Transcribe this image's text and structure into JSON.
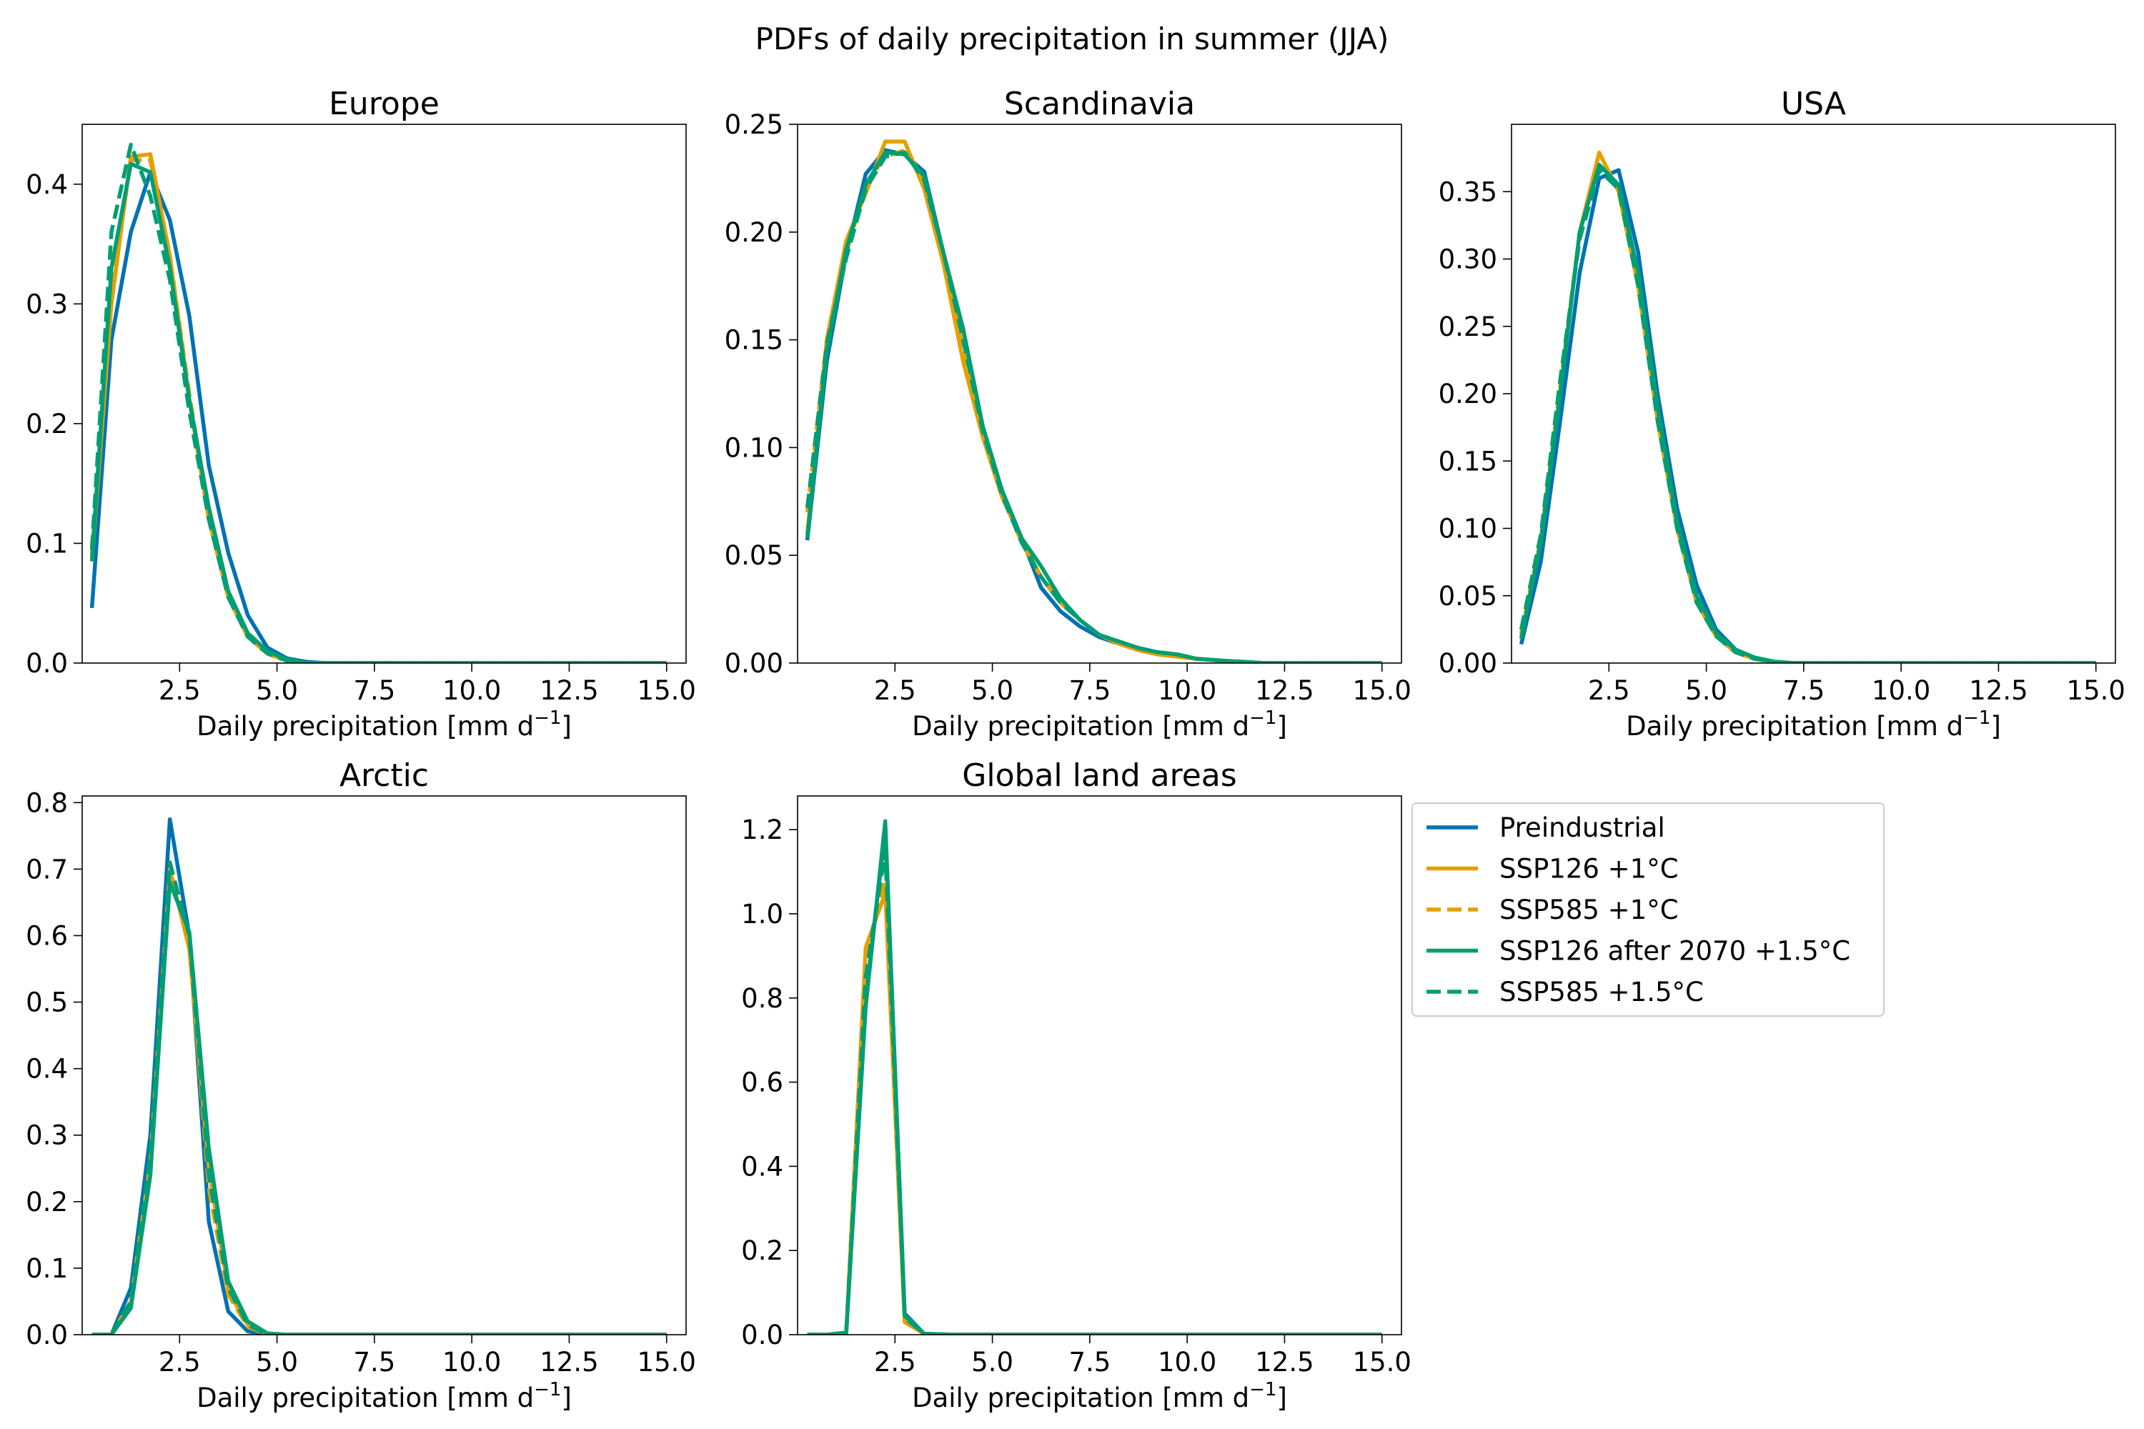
{
  "figure_title": "PDFs of daily precipitation in summer (JJA)",
  "legend": {
    "placement": "right of Global land areas panel",
    "entries": [
      {
        "label": "Preindustrial",
        "color": "#0072B2",
        "dash": false
      },
      {
        "label": "SSP126 +1°C",
        "color": "#E69F00",
        "dash": false
      },
      {
        "label": "SSP585 +1°C",
        "color": "#E69F00",
        "dash": true
      },
      {
        "label": "SSP126 after 2070 +1.5°C",
        "color": "#009E73",
        "dash": false
      },
      {
        "label": "SSP585 +1.5°C",
        "color": "#009E73",
        "dash": true
      }
    ]
  },
  "chart_data": [
    {
      "type": "line",
      "title": "Europe",
      "xlabel": "Daily precipitation [mm d",
      "xlabel_sup": "−1",
      "xlabel_end": "]",
      "xlim": [
        0,
        15.5
      ],
      "ylim": [
        0,
        0.45
      ],
      "xticks": [
        "2.5",
        "5.0",
        "7.5",
        "10.0",
        "12.5",
        "15.0"
      ],
      "yticks": [
        "0.0",
        "0.1",
        "0.2",
        "0.3",
        "0.4"
      ],
      "x": [
        0.25,
        0.75,
        1.25,
        1.75,
        2.25,
        2.75,
        3.25,
        3.75,
        4.25,
        4.75,
        5.25,
        5.75,
        6.25,
        7.0,
        8.0,
        10.0,
        12.0,
        15.0
      ],
      "series": [
        {
          "name": "Preindustrial",
          "values": [
            0.046,
            0.27,
            0.36,
            0.41,
            0.37,
            0.29,
            0.165,
            0.092,
            0.04,
            0.013,
            0.004,
            0.001,
            0,
            0,
            0,
            0,
            0,
            0
          ]
        },
        {
          "name": "SSP126 +1°C",
          "values": [
            0.085,
            0.3,
            0.423,
            0.425,
            0.34,
            0.22,
            0.12,
            0.055,
            0.022,
            0.008,
            0.002,
            0,
            0,
            0,
            0,
            0,
            0,
            0
          ]
        },
        {
          "name": "SSP585 +1°C",
          "values": [
            0.09,
            0.31,
            0.42,
            0.42,
            0.34,
            0.225,
            0.12,
            0.055,
            0.022,
            0.008,
            0.002,
            0,
            0,
            0,
            0,
            0,
            0,
            0
          ]
        },
        {
          "name": "SSP126 after 2070 +1.5°C",
          "values": [
            0.085,
            0.33,
            0.417,
            0.41,
            0.33,
            0.22,
            0.13,
            0.06,
            0.025,
            0.01,
            0.003,
            0,
            0,
            0,
            0,
            0,
            0,
            0
          ]
        },
        {
          "name": "SSP585 +1.5°C",
          "values": [
            0.095,
            0.36,
            0.433,
            0.39,
            0.32,
            0.21,
            0.12,
            0.055,
            0.022,
            0.008,
            0.002,
            0,
            0,
            0,
            0,
            0,
            0,
            0
          ]
        }
      ]
    },
    {
      "type": "line",
      "title": "Scandinavia",
      "xlabel": "Daily precipitation [mm d",
      "xlabel_sup": "−1",
      "xlabel_end": "]",
      "xlim": [
        0,
        15.5
      ],
      "ylim": [
        0,
        0.25
      ],
      "xticks": [
        "2.5",
        "5.0",
        "7.5",
        "10.0",
        "12.5",
        "15.0"
      ],
      "yticks": [
        "0.00",
        "0.05",
        "0.10",
        "0.15",
        "0.20",
        "0.25"
      ],
      "x": [
        0.25,
        0.75,
        1.25,
        1.75,
        2.25,
        2.75,
        3.25,
        3.75,
        4.25,
        4.75,
        5.25,
        5.75,
        6.25,
        6.75,
        7.25,
        7.75,
        8.25,
        8.75,
        9.25,
        9.75,
        10.25,
        11.0,
        12.0,
        13.0,
        14.0,
        15.0
      ],
      "series": [
        {
          "name": "Preindustrial",
          "values": [
            0.057,
            0.14,
            0.19,
            0.227,
            0.238,
            0.236,
            0.228,
            0.19,
            0.155,
            0.11,
            0.08,
            0.058,
            0.035,
            0.024,
            0.017,
            0.012,
            0.009,
            0.006,
            0.004,
            0.003,
            0.002,
            0.001,
            0,
            0,
            0,
            0
          ]
        },
        {
          "name": "SSP126 +1°C",
          "values": [
            0.06,
            0.15,
            0.196,
            0.218,
            0.242,
            0.242,
            0.22,
            0.185,
            0.14,
            0.105,
            0.077,
            0.057,
            0.04,
            0.028,
            0.02,
            0.013,
            0.009,
            0.006,
            0.004,
            0.003,
            0.002,
            0.001,
            0,
            0,
            0,
            0
          ]
        },
        {
          "name": "SSP585 +1°C",
          "values": [
            0.07,
            0.15,
            0.19,
            0.222,
            0.235,
            0.238,
            0.225,
            0.19,
            0.145,
            0.11,
            0.078,
            0.056,
            0.04,
            0.029,
            0.02,
            0.013,
            0.009,
            0.006,
            0.004,
            0.003,
            0.002,
            0.001,
            0,
            0,
            0,
            0
          ]
        },
        {
          "name": "SSP126 after 2070 +1.5°C",
          "values": [
            0.058,
            0.145,
            0.192,
            0.222,
            0.237,
            0.236,
            0.226,
            0.19,
            0.155,
            0.11,
            0.08,
            0.058,
            0.045,
            0.03,
            0.02,
            0.013,
            0.01,
            0.007,
            0.005,
            0.004,
            0.002,
            0.001,
            0,
            0,
            0,
            0
          ]
        },
        {
          "name": "SSP585 +1.5°C",
          "values": [
            0.072,
            0.148,
            0.188,
            0.22,
            0.235,
            0.237,
            0.224,
            0.19,
            0.15,
            0.108,
            0.078,
            0.056,
            0.04,
            0.028,
            0.02,
            0.013,
            0.01,
            0.007,
            0.005,
            0.004,
            0.002,
            0.001,
            0,
            0,
            0,
            0
          ]
        }
      ]
    },
    {
      "type": "line",
      "title": "USA",
      "xlabel": "Daily precipitation [mm d",
      "xlabel_sup": "−1",
      "xlabel_end": "]",
      "xlim": [
        0,
        15.5
      ],
      "ylim": [
        0,
        0.4
      ],
      "xticks": [
        "2.5",
        "5.0",
        "7.5",
        "10.0",
        "12.5",
        "15.0"
      ],
      "yticks": [
        "0.00",
        "0.05",
        "0.10",
        "0.15",
        "0.20",
        "0.25",
        "0.30",
        "0.35"
      ],
      "x": [
        0.25,
        0.75,
        1.25,
        1.75,
        2.25,
        2.75,
        3.25,
        3.75,
        4.25,
        4.75,
        5.25,
        5.75,
        6.25,
        6.75,
        7.25,
        8.0,
        10.0,
        12.0,
        15.0
      ],
      "series": [
        {
          "name": "Preindustrial",
          "values": [
            0.014,
            0.075,
            0.18,
            0.29,
            0.36,
            0.366,
            0.305,
            0.2,
            0.115,
            0.058,
            0.025,
            0.01,
            0.004,
            0.001,
            0,
            0,
            0,
            0,
            0
          ]
        },
        {
          "name": "SSP126 +1°C",
          "values": [
            0.02,
            0.09,
            0.2,
            0.32,
            0.379,
            0.35,
            0.28,
            0.18,
            0.1,
            0.045,
            0.02,
            0.008,
            0.003,
            0.001,
            0,
            0,
            0,
            0,
            0
          ]
        },
        {
          "name": "SSP585 +1°C",
          "values": [
            0.022,
            0.092,
            0.205,
            0.32,
            0.37,
            0.355,
            0.285,
            0.185,
            0.1,
            0.047,
            0.021,
            0.008,
            0.003,
            0.001,
            0,
            0,
            0,
            0,
            0
          ]
        },
        {
          "name": "SSP126 after 2070 +1.5°C",
          "values": [
            0.018,
            0.09,
            0.2,
            0.32,
            0.37,
            0.355,
            0.29,
            0.19,
            0.105,
            0.05,
            0.022,
            0.01,
            0.004,
            0.001,
            0,
            0,
            0,
            0,
            0
          ]
        },
        {
          "name": "SSP585 +1.5°C",
          "values": [
            0.025,
            0.095,
            0.21,
            0.315,
            0.366,
            0.352,
            0.28,
            0.18,
            0.1,
            0.045,
            0.02,
            0.008,
            0.003,
            0.001,
            0,
            0,
            0,
            0,
            0
          ]
        }
      ]
    },
    {
      "type": "line",
      "title": "Arctic",
      "xlabel": "Daily precipitation [mm d",
      "xlabel_sup": "−1",
      "xlabel_end": "]",
      "xlim": [
        0,
        15.5
      ],
      "ylim": [
        0,
        0.81
      ],
      "xticks": [
        "2.5",
        "5.0",
        "7.5",
        "10.0",
        "12.5",
        "15.0"
      ],
      "yticks": [
        "0.0",
        "0.1",
        "0.2",
        "0.3",
        "0.4",
        "0.5",
        "0.6",
        "0.7",
        "0.8"
      ],
      "x": [
        0.25,
        0.75,
        1.25,
        1.75,
        2.25,
        2.75,
        3.25,
        3.75,
        4.25,
        4.75,
        5.25,
        6.0,
        8.0,
        10.0,
        12.0,
        15.0
      ],
      "series": [
        {
          "name": "Preindustrial",
          "values": [
            0,
            0,
            0.07,
            0.3,
            0.775,
            0.6,
            0.17,
            0.035,
            0.005,
            0,
            0,
            0,
            0,
            0,
            0,
            0
          ]
        },
        {
          "name": "SSP126 +1°C",
          "values": [
            0,
            0,
            0.05,
            0.26,
            0.7,
            0.58,
            0.25,
            0.065,
            0.015,
            0,
            0,
            0,
            0,
            0,
            0,
            0
          ]
        },
        {
          "name": "SSP585 +1°C",
          "values": [
            0,
            0,
            0.045,
            0.25,
            0.71,
            0.59,
            0.22,
            0.06,
            0.012,
            0,
            0,
            0,
            0,
            0,
            0,
            0
          ]
        },
        {
          "name": "SSP126 after 2070 +1.5°C",
          "values": [
            0,
            0,
            0.04,
            0.24,
            0.68,
            0.605,
            0.28,
            0.08,
            0.02,
            0.002,
            0,
            0,
            0,
            0,
            0,
            0
          ]
        },
        {
          "name": "SSP585 +1.5°C",
          "values": [
            0,
            0,
            0.05,
            0.27,
            0.71,
            0.6,
            0.24,
            0.07,
            0.015,
            0,
            0,
            0,
            0,
            0,
            0,
            0
          ]
        }
      ]
    },
    {
      "type": "line",
      "title": "Global land areas",
      "xlabel": "Daily precipitation [mm d",
      "xlabel_sup": "−1",
      "xlabel_end": "]",
      "xlim": [
        0,
        15.5
      ],
      "ylim": [
        0,
        1.28
      ],
      "xticks": [
        "2.5",
        "5.0",
        "7.5",
        "10.0",
        "12.5",
        "15.0"
      ],
      "yticks": [
        "0.0",
        "0.2",
        "0.4",
        "0.6",
        "0.8",
        "1.0",
        "1.2"
      ],
      "x": [
        0.25,
        0.75,
        1.25,
        1.75,
        2.25,
        2.75,
        3.25,
        4.0,
        6.0,
        8.0,
        10.0,
        12.0,
        15.0
      ],
      "series": [
        {
          "name": "Preindustrial",
          "values": [
            0,
            0,
            0.005,
            0.8,
            1.2,
            0.05,
            0.002,
            0,
            0,
            0,
            0,
            0,
            0
          ]
        },
        {
          "name": "SSP126 +1°C",
          "values": [
            0,
            0,
            0.005,
            0.92,
            1.05,
            0.03,
            0.002,
            0,
            0,
            0,
            0,
            0,
            0
          ]
        },
        {
          "name": "SSP585 +1°C",
          "values": [
            0,
            0,
            0.005,
            0.9,
            1.08,
            0.03,
            0.002,
            0,
            0,
            0,
            0,
            0,
            0
          ]
        },
        {
          "name": "SSP126 after 2070 +1.5°C",
          "values": [
            0,
            0,
            0.005,
            0.78,
            1.22,
            0.045,
            0.002,
            0,
            0,
            0,
            0,
            0,
            0
          ]
        },
        {
          "name": "SSP585 +1.5°C",
          "values": [
            0,
            0,
            0.005,
            0.85,
            1.15,
            0.04,
            0.002,
            0,
            0,
            0,
            0,
            0,
            0
          ]
        }
      ]
    }
  ]
}
